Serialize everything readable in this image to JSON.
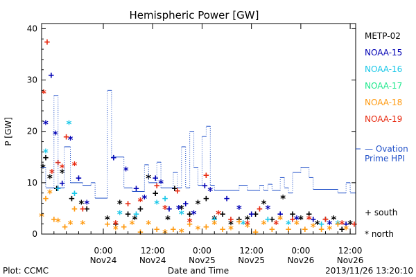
{
  "chart_data": {
    "type": "scatter",
    "title": "Hemispheric Power [GW]",
    "ylabel": "P [GW]",
    "xlabel": "Date and Time",
    "ylim": [
      0,
      41
    ],
    "xlim": [
      "2013-11-23 09:00",
      "2013-11-26 13:20"
    ],
    "yticks": [
      0,
      10,
      20,
      30,
      40
    ],
    "xticks": [
      {
        "value": "2013-11-24 00:00",
        "time": "0:00",
        "date": "Nov24"
      },
      {
        "value": "2013-11-24 12:00",
        "time": "12:00",
        "date": "Nov24"
      },
      {
        "value": "2013-11-25 00:00",
        "time": "0:00",
        "date": "Nov25"
      },
      {
        "value": "2013-11-25 12:00",
        "time": "12:00",
        "date": "Nov25"
      },
      {
        "value": "2013-11-26 00:00",
        "time": "0:00",
        "date": "Nov26"
      },
      {
        "value": "2013-11-26 12:00",
        "time": "12:00",
        "date": "Nov26"
      }
    ],
    "grid": false,
    "legend_position": "right",
    "series": [
      {
        "name": "METP-02",
        "color": "#000000",
        "points": [
          [
            "2013-11-23 09:20",
            13
          ],
          [
            "2013-11-23 10:00",
            15
          ],
          [
            "2013-11-23 11:00",
            11
          ],
          [
            "2013-11-23 12:40",
            9
          ],
          [
            "2013-11-23 14:00",
            12
          ],
          [
            "2013-11-23 16:20",
            7
          ],
          [
            "2013-11-23 18:40",
            6
          ],
          [
            "2013-11-23 20:00",
            5
          ],
          [
            "2013-11-24 01:00",
            3
          ],
          [
            "2013-11-24 03:00",
            2
          ],
          [
            "2013-11-24 04:00",
            6
          ],
          [
            "2013-11-24 06:00",
            4
          ],
          [
            "2013-11-24 07:40",
            3
          ],
          [
            "2013-11-24 09:00",
            5
          ],
          [
            "2013-11-24 11:00",
            11
          ],
          [
            "2013-11-24 12:40",
            8
          ],
          [
            "2013-11-24 15:40",
            3
          ],
          [
            "2013-11-24 17:20",
            9
          ],
          [
            "2013-11-24 19:00",
            5
          ],
          [
            "2013-11-24 21:00",
            4
          ],
          [
            "2013-11-24 23:00",
            6
          ],
          [
            "2013-11-25 01:00",
            7
          ],
          [
            "2013-11-25 03:00",
            3
          ],
          [
            "2013-11-25 05:00",
            4
          ],
          [
            "2013-11-25 07:00",
            2
          ],
          [
            "2013-11-25 09:00",
            3
          ],
          [
            "2013-11-25 11:00",
            3
          ],
          [
            "2013-11-25 13:00",
            4
          ],
          [
            "2013-11-25 15:00",
            6
          ],
          [
            "2013-11-25 17:00",
            3
          ],
          [
            "2013-11-25 19:40",
            7
          ],
          [
            "2013-11-25 22:00",
            4
          ],
          [
            "2013-11-26 00:00",
            3
          ],
          [
            "2013-11-26 02:00",
            4
          ],
          [
            "2013-11-26 04:00",
            2
          ],
          [
            "2013-11-26 06:00",
            3
          ],
          [
            "2013-11-26 08:00",
            3
          ],
          [
            "2013-11-26 10:00",
            1
          ],
          [
            "2013-11-26 12:00",
            2
          ]
        ]
      },
      {
        "name": "NOAA-15",
        "color": "#0000b4",
        "points": [
          [
            "2013-11-23 10:00",
            21.5
          ],
          [
            "2013-11-23 11:20",
            31
          ],
          [
            "2013-11-23 12:20",
            19.5
          ],
          [
            "2013-11-23 14:00",
            10
          ],
          [
            "2013-11-23 16:00",
            18.5
          ],
          [
            "2013-11-23 18:00",
            11
          ],
          [
            "2013-11-23 20:00",
            6
          ],
          [
            "2013-11-24 02:30",
            15
          ],
          [
            "2013-11-24 05:30",
            12.5
          ],
          [
            "2013-11-24 08:00",
            9
          ],
          [
            "2013-11-24 10:00",
            7
          ],
          [
            "2013-11-24 12:40",
            11
          ],
          [
            "2013-11-24 14:00",
            10
          ],
          [
            "2013-11-24 16:00",
            5
          ],
          [
            "2013-11-24 18:20",
            5
          ],
          [
            "2013-11-24 20:00",
            6
          ],
          [
            "2013-11-24 22:00",
            4
          ],
          [
            "2013-11-25 00:40",
            9.5
          ],
          [
            "2013-11-25 02:00",
            8.5
          ],
          [
            "2013-11-25 06:00",
            7
          ],
          [
            "2013-11-25 09:00",
            5
          ],
          [
            "2013-11-25 12:00",
            4
          ],
          [
            "2013-11-25 16:00",
            5
          ],
          [
            "2013-11-25 19:00",
            4
          ],
          [
            "2013-11-25 23:00",
            3
          ],
          [
            "2013-11-26 03:00",
            3
          ],
          [
            "2013-11-26 07:00",
            2
          ],
          [
            "2013-11-26 11:00",
            2
          ]
        ]
      },
      {
        "name": "NOAA-16",
        "color": "#18c7e8",
        "points": [
          [
            "2013-11-23 10:00",
            16
          ],
          [
            "2013-11-23 13:00",
            9
          ],
          [
            "2013-11-23 15:40",
            21.5
          ],
          [
            "2013-11-23 17:00",
            8
          ],
          [
            "2013-11-24 04:00",
            4
          ],
          [
            "2013-11-24 08:00",
            4
          ],
          [
            "2013-11-24 13:00",
            6
          ],
          [
            "2013-11-24 15:00",
            7
          ],
          [
            "2013-11-24 19:00",
            4
          ],
          [
            "2013-11-25 03:00",
            3
          ],
          [
            "2013-11-25 10:00",
            2
          ],
          [
            "2013-11-25 16:00",
            3
          ],
          [
            "2013-11-25 21:00",
            2
          ],
          [
            "2013-11-26 05:00",
            2
          ],
          [
            "2013-11-26 09:00",
            2
          ]
        ]
      },
      {
        "name": "NOAA-17",
        "color": "#1ee88c",
        "points": []
      },
      {
        "name": "NOAA-18",
        "color": "#ff9a10",
        "points": [
          [
            "2013-11-23 09:00",
            3.5
          ],
          [
            "2013-11-23 10:00",
            7
          ],
          [
            "2013-11-23 11:00",
            8
          ],
          [
            "2013-11-23 12:00",
            3
          ],
          [
            "2013-11-23 13:00",
            2.5
          ],
          [
            "2013-11-23 14:40",
            1.5
          ],
          [
            "2013-11-23 16:00",
            2
          ],
          [
            "2013-11-23 17:00",
            5
          ],
          [
            "2013-11-23 19:00",
            2
          ],
          [
            "2013-11-24 01:00",
            2
          ],
          [
            "2013-11-24 03:00",
            1
          ],
          [
            "2013-11-24 05:00",
            1.5
          ],
          [
            "2013-11-24 07:00",
            2
          ],
          [
            "2013-11-24 09:00",
            0.5
          ],
          [
            "2013-11-24 11:00",
            2
          ],
          [
            "2013-11-24 13:00",
            1
          ],
          [
            "2013-11-24 15:00",
            0.3
          ],
          [
            "2013-11-24 17:00",
            1
          ],
          [
            "2013-11-24 19:00",
            0.5
          ],
          [
            "2013-11-24 21:00",
            2
          ],
          [
            "2013-11-24 23:00",
            1
          ],
          [
            "2013-11-25 01:00",
            1.5
          ],
          [
            "2013-11-25 03:00",
            2
          ],
          [
            "2013-11-25 05:00",
            1
          ],
          [
            "2013-11-25 07:00",
            1
          ],
          [
            "2013-11-25 09:00",
            2.5
          ],
          [
            "2013-11-25 11:00",
            1.5
          ],
          [
            "2013-11-25 13:00",
            0.5
          ],
          [
            "2013-11-25 15:00",
            2
          ],
          [
            "2013-11-25 17:00",
            1
          ],
          [
            "2013-11-25 19:00",
            3
          ],
          [
            "2013-11-25 21:00",
            1
          ],
          [
            "2013-11-25 23:00",
            2
          ],
          [
            "2013-11-26 01:00",
            1
          ],
          [
            "2013-11-26 03:00",
            1.5
          ],
          [
            "2013-11-26 05:00",
            1
          ],
          [
            "2013-11-26 07:00",
            1
          ],
          [
            "2013-11-26 09:00",
            2
          ],
          [
            "2013-11-26 11:00",
            1
          ]
        ]
      },
      {
        "name": "NOAA-19",
        "color": "#e82a10",
        "points": [
          [
            "2013-11-23 09:30",
            27.5
          ],
          [
            "2013-11-23 10:20",
            37.5
          ],
          [
            "2013-11-23 11:30",
            12
          ],
          [
            "2013-11-23 13:00",
            14
          ],
          [
            "2013-11-23 14:00",
            13
          ],
          [
            "2013-11-23 15:00",
            19
          ],
          [
            "2013-11-23 17:00",
            13.5
          ],
          [
            "2013-11-23 19:00",
            5
          ],
          [
            "2013-11-24 03:00",
            2
          ],
          [
            "2013-11-24 06:00",
            6
          ],
          [
            "2013-11-24 09:00",
            6.5
          ],
          [
            "2013-11-24 13:00",
            9.5
          ],
          [
            "2013-11-24 15:00",
            5
          ],
          [
            "2013-11-24 18:00",
            8.5
          ],
          [
            "2013-11-24 21:00",
            2.5
          ],
          [
            "2013-11-25 01:00",
            11.5
          ],
          [
            "2013-11-25 04:00",
            4
          ],
          [
            "2013-11-25 07:00",
            3
          ],
          [
            "2013-11-25 11:00",
            2
          ],
          [
            "2013-11-25 14:00",
            5
          ],
          [
            "2013-11-25 18:00",
            2
          ],
          [
            "2013-11-25 22:00",
            3
          ],
          [
            "2013-11-26 02:00",
            3
          ],
          [
            "2013-11-26 06:00",
            3
          ],
          [
            "2013-11-26 10:00",
            2
          ],
          [
            "2013-11-26 13:00",
            2
          ]
        ]
      },
      {
        "name": "Ovation Prime HPI",
        "color": "#1f4fc8",
        "style": "step",
        "points": [
          [
            "2013-11-23 09:00",
            13
          ],
          [
            "2013-11-23 10:00",
            9
          ],
          [
            "2013-11-23 12:00",
            27
          ],
          [
            "2013-11-23 13:00",
            9
          ],
          [
            "2013-11-23 14:30",
            17
          ],
          [
            "2013-11-23 16:00",
            10
          ],
          [
            "2013-11-23 19:00",
            9.5
          ],
          [
            "2013-11-23 21:00",
            10
          ],
          [
            "2013-11-23 22:00",
            7
          ],
          [
            "2013-11-24 01:00",
            28
          ],
          [
            "2013-11-24 02:00",
            15
          ],
          [
            "2013-11-24 05:00",
            9
          ],
          [
            "2013-11-24 07:00",
            8.3
          ],
          [
            "2013-11-24 10:00",
            13.5
          ],
          [
            "2013-11-24 11:00",
            10
          ],
          [
            "2013-11-24 13:00",
            14
          ],
          [
            "2013-11-24 14:00",
            9
          ],
          [
            "2013-11-24 17:00",
            12
          ],
          [
            "2013-11-24 18:00",
            9
          ],
          [
            "2013-11-24 19:00",
            17
          ],
          [
            "2013-11-24 20:00",
            9
          ],
          [
            "2013-11-24 21:00",
            20
          ],
          [
            "2013-11-24 22:00",
            13
          ],
          [
            "2013-11-24 23:00",
            9.5
          ],
          [
            "2013-11-25 00:00",
            19
          ],
          [
            "2013-11-25 01:00",
            21
          ],
          [
            "2013-11-25 02:00",
            9.5
          ],
          [
            "2013-11-25 03:00",
            8.5
          ],
          [
            "2013-11-25 09:00",
            9.5
          ],
          [
            "2013-11-25 11:00",
            8.5
          ],
          [
            "2013-11-25 14:00",
            9.5
          ],
          [
            "2013-11-25 15:00",
            8.5
          ],
          [
            "2013-11-25 16:00",
            9.7
          ],
          [
            "2013-11-25 17:00",
            8.5
          ],
          [
            "2013-11-25 19:00",
            11
          ],
          [
            "2013-11-25 20:00",
            9
          ],
          [
            "2013-11-25 21:00",
            8
          ],
          [
            "2013-11-25 22:00",
            12
          ],
          [
            "2013-11-26 00:00",
            13
          ],
          [
            "2013-11-26 02:00",
            11
          ],
          [
            "2013-11-26 03:00",
            8.7
          ],
          [
            "2013-11-26 09:00",
            8
          ],
          [
            "2013-11-26 11:00",
            10
          ],
          [
            "2013-11-26 12:00",
            8
          ],
          [
            "2013-11-26 13:20",
            8
          ]
        ]
      }
    ],
    "marker_key": {
      "plus": "+ south",
      "star": "* north"
    },
    "footer": {
      "left": "Plot: CCMC",
      "right": "2013/11/26 13:20:10"
    }
  }
}
